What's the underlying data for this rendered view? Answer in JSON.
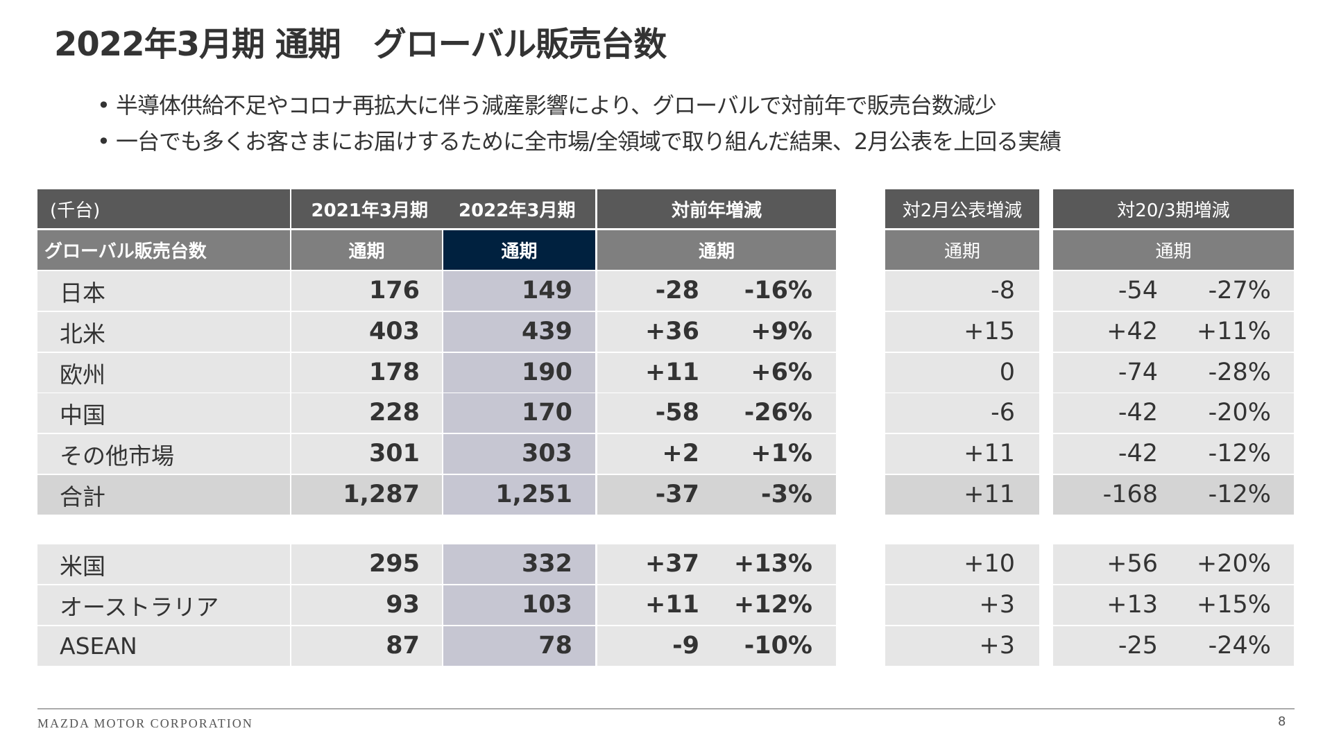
{
  "title": "2022年3月期 通期　グローバル販売台数",
  "bullets": [
    "半導体供給不足やコロナ再拡大に伴う減産影響により、グローバルで対前年で販売台数減少",
    "一台でも多くお客さまにお届けするために全市場/全領域で取り組んだ結果、2月公表を上回る実績"
  ],
  "table": {
    "header_row1": {
      "unit": "(千台)",
      "fy2021": "2021年3月期",
      "fy2022": "2022年3月期",
      "yoy": "対前年増減",
      "vs_feb": "対2月公表増減",
      "vs_fy20": "対20/3期増減"
    },
    "header_row2": {
      "label": "グローバル販売台数",
      "fy2021": "通期",
      "fy2022": "通期",
      "yoy": "通期",
      "vs_feb": "通期",
      "vs_fy20": "通期"
    },
    "rows": [
      {
        "region": "日本",
        "fy2021": "176",
        "fy2022": "149",
        "yoy": "-28",
        "yoy_pct": "-16%",
        "vs_feb": "-8",
        "vs_fy20": "-54",
        "vs_fy20_pct": "-27%"
      },
      {
        "region": "北米",
        "fy2021": "403",
        "fy2022": "439",
        "yoy": "+36",
        "yoy_pct": "+9%",
        "vs_feb": "+15",
        "vs_fy20": "+42",
        "vs_fy20_pct": "+11%"
      },
      {
        "region": "欧州",
        "fy2021": "178",
        "fy2022": "190",
        "yoy": "+11",
        "yoy_pct": "+6%",
        "vs_feb": "0",
        "vs_fy20": "-74",
        "vs_fy20_pct": "-28%"
      },
      {
        "region": "中国",
        "fy2021": "228",
        "fy2022": "170",
        "yoy": "-58",
        "yoy_pct": "-26%",
        "vs_feb": "-6",
        "vs_fy20": "-42",
        "vs_fy20_pct": "-20%"
      },
      {
        "region": "その他市場",
        "fy2021": "301",
        "fy2022": "303",
        "yoy": "+2",
        "yoy_pct": "+1%",
        "vs_feb": "+11",
        "vs_fy20": "-42",
        "vs_fy20_pct": "-12%"
      },
      {
        "region": "合計",
        "fy2021": "1,287",
        "fy2022": "1,251",
        "yoy": "-37",
        "yoy_pct": "-3%",
        "vs_feb": "+11",
        "vs_fy20": "-168",
        "vs_fy20_pct": "-12%",
        "total": true
      }
    ],
    "sub_rows": [
      {
        "region": "米国",
        "fy2021": "295",
        "fy2022": "332",
        "yoy": "+37",
        "yoy_pct": "+13%",
        "vs_feb": "+10",
        "vs_fy20": "+56",
        "vs_fy20_pct": "+20%"
      },
      {
        "region": "オーストラリア",
        "fy2021": "93",
        "fy2022": "103",
        "yoy": "+11",
        "yoy_pct": "+12%",
        "vs_feb": "+3",
        "vs_fy20": "+13",
        "vs_fy20_pct": "+15%"
      },
      {
        "region": "ASEAN",
        "fy2021": "87",
        "fy2022": "78",
        "yoy": "-9",
        "yoy_pct": "-10%",
        "vs_feb": "+3",
        "vs_fy20": "-25",
        "vs_fy20_pct": "-24%"
      }
    ]
  },
  "footer": {
    "company": "MAZDA MOTOR CORPORATION",
    "page_number": "8"
  },
  "colors": {
    "header_dark": "#595959",
    "header_mid": "#7f7f7f",
    "highlight_header": "#00213f",
    "row_bg": "#e6e6e6",
    "total_bg": "#d4d4d4",
    "highlight_col": "#c6c6d2"
  }
}
